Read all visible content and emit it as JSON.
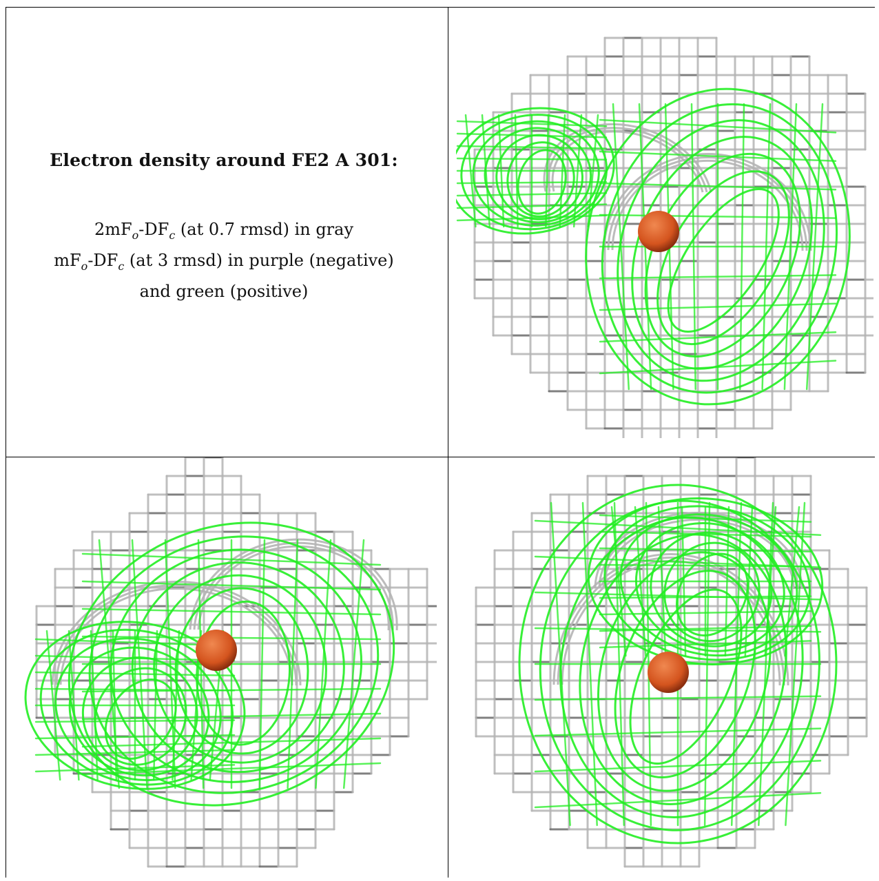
{
  "title": "Electron density around FE2 A 301:",
  "legend": {
    "line1": {
      "a": "2mF",
      "a_sub": "o",
      "b": "-DF",
      "b_sub": "c",
      "c": " (at 0.7 rmsd) in gray"
    },
    "line2": {
      "a": "mF",
      "a_sub": "o",
      "b": "-DF",
      "b_sub": "c",
      "c": " (at 3 rmsd) in purple (negative)"
    },
    "line3": "and green (positive)"
  },
  "colors": {
    "gray_mesh": "#b4b4b4",
    "gray_dark": "#6a6a6a",
    "green_mesh": "#22ee22",
    "atom": "#d4541e",
    "atom_highlight": "#f08850"
  },
  "panels": [
    {
      "name": "view-top-right",
      "atom": "FE2 A 301"
    },
    {
      "name": "view-bottom-left",
      "atom": "FE2 A 301"
    },
    {
      "name": "view-bottom-right",
      "atom": "FE2 A 301"
    }
  ]
}
